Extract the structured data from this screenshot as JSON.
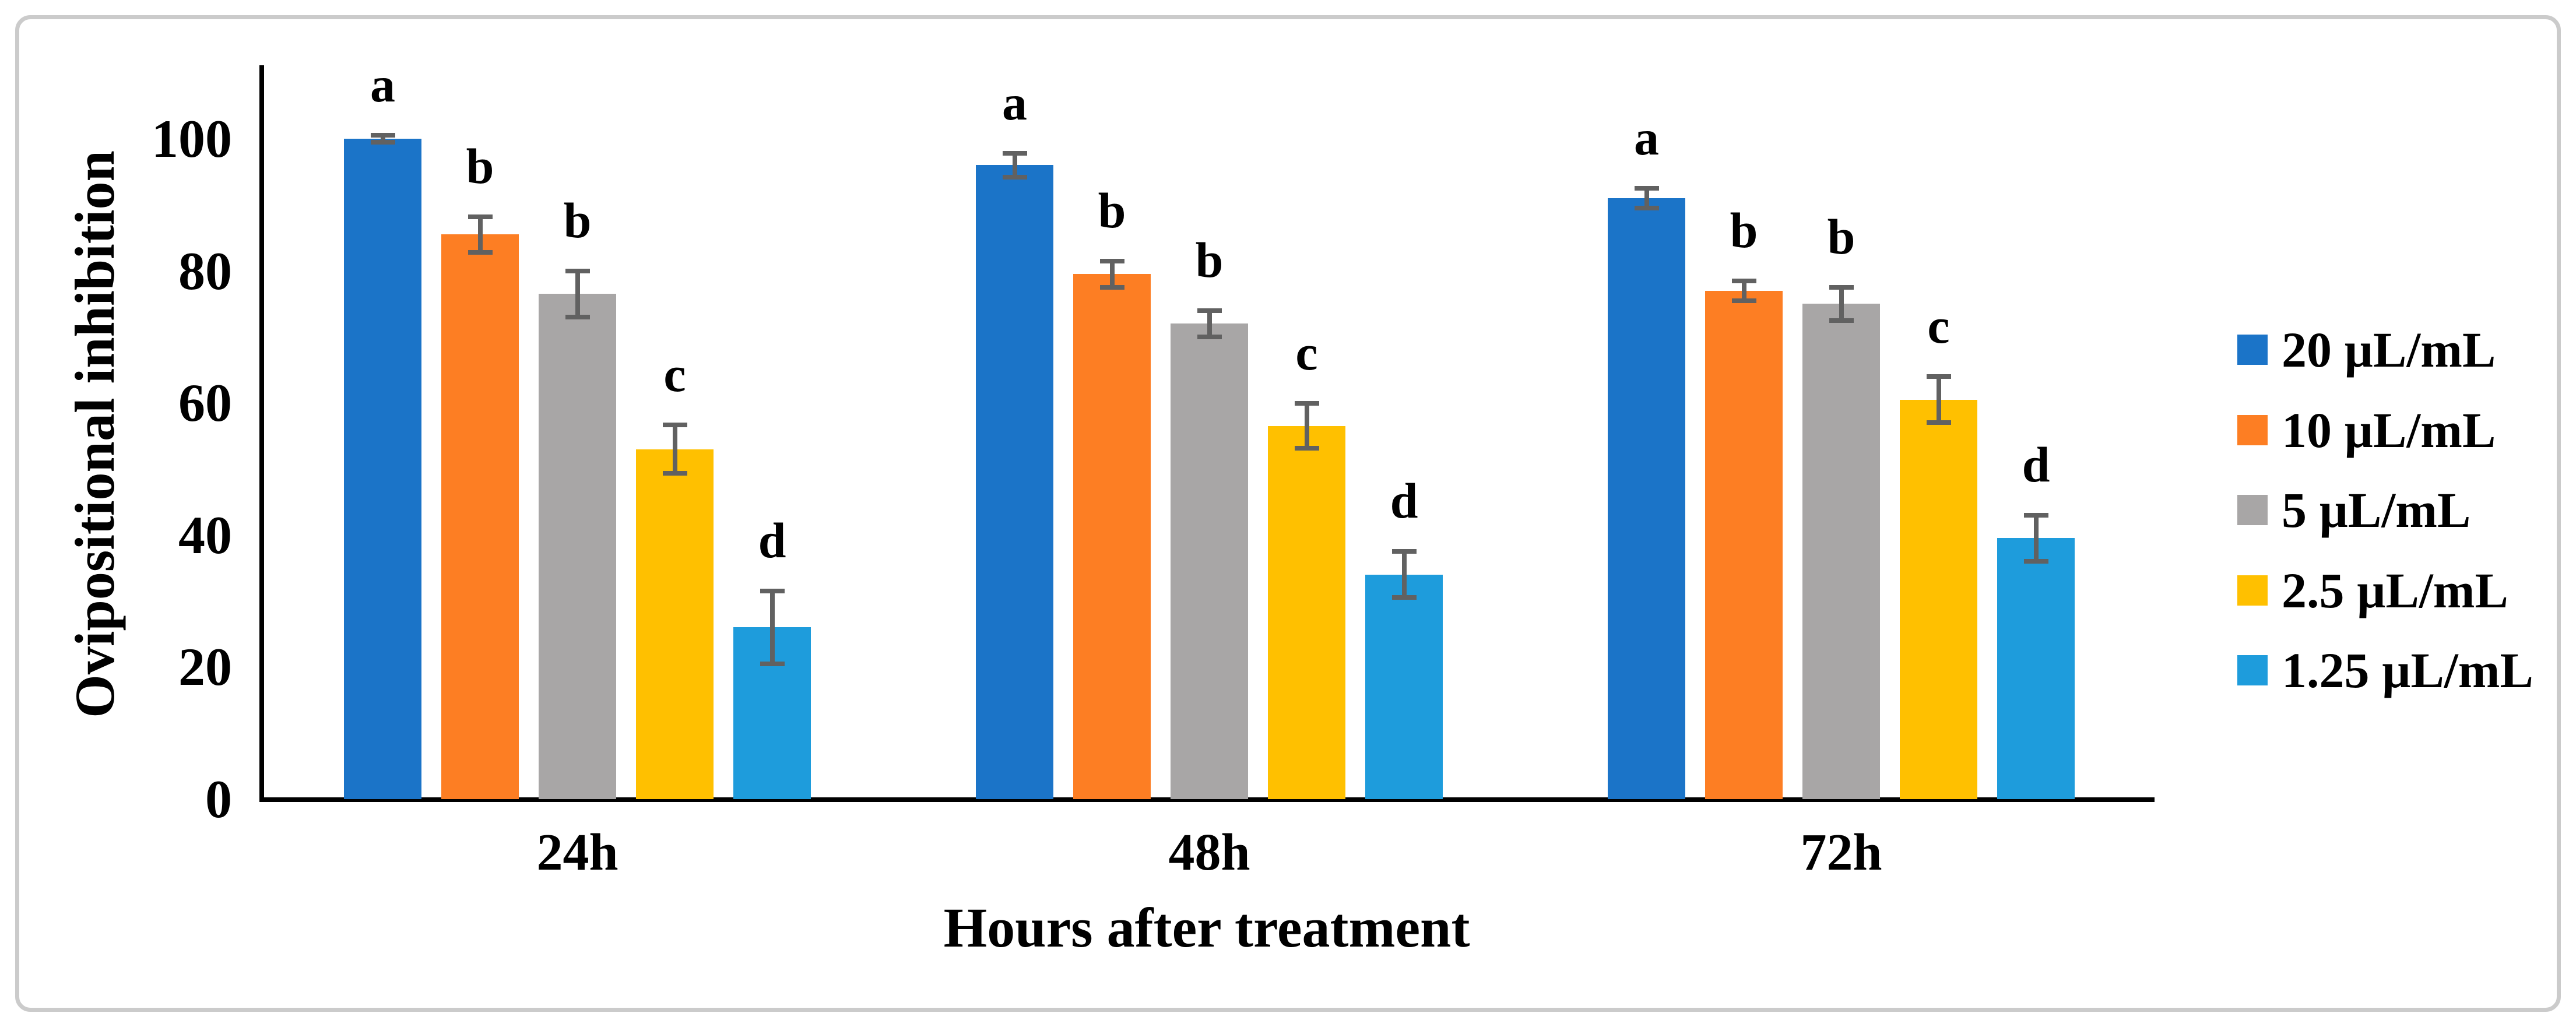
{
  "figure": {
    "background": "#ffffff",
    "frame_border_color": "#cbcbcb"
  },
  "chart_data": {
    "type": "bar",
    "title": "",
    "xlabel": "Hours after treatment",
    "ylabel": "Ovipositional inhibition",
    "categories": [
      "24h",
      "48h",
      "72h"
    ],
    "series": [
      {
        "name": "20 µL/mL",
        "color": "#1b74c8",
        "values": [
          100,
          96,
          91
        ],
        "errors": [
          0.5,
          1.8,
          1.5
        ],
        "letters": [
          "a",
          "a",
          "a"
        ]
      },
      {
        "name": "10 µL/mL",
        "color": "#fd7e23",
        "values": [
          85.5,
          79.5,
          77
        ],
        "errors": [
          2.7,
          2.0,
          1.5
        ],
        "letters": [
          "b",
          "b",
          "b"
        ]
      },
      {
        "name": "5 µL/mL",
        "color": "#a8a6a6",
        "values": [
          76.5,
          72,
          75
        ],
        "errors": [
          3.5,
          2.0,
          2.5
        ],
        "letters": [
          "b",
          "b",
          "b"
        ]
      },
      {
        "name": "2.5 µL/mL",
        "color": "#ffc000",
        "values": [
          53,
          56.5,
          60.5
        ],
        "errors": [
          3.7,
          3.4,
          3.5
        ],
        "letters": [
          "c",
          "c",
          "c"
        ]
      },
      {
        "name": "1.25 µL/mL",
        "color": "#1e9cdc",
        "values": [
          26,
          34,
          39.5
        ],
        "errors": [
          5.5,
          3.5,
          3.5
        ],
        "letters": [
          "d",
          "d",
          "d"
        ]
      }
    ],
    "yticks": [
      0,
      20,
      40,
      60,
      80,
      100
    ],
    "ylim": [
      0,
      111
    ],
    "grid": false,
    "legend_position": "right",
    "axis_color": "#000000",
    "error_bar_color": "#616161"
  }
}
